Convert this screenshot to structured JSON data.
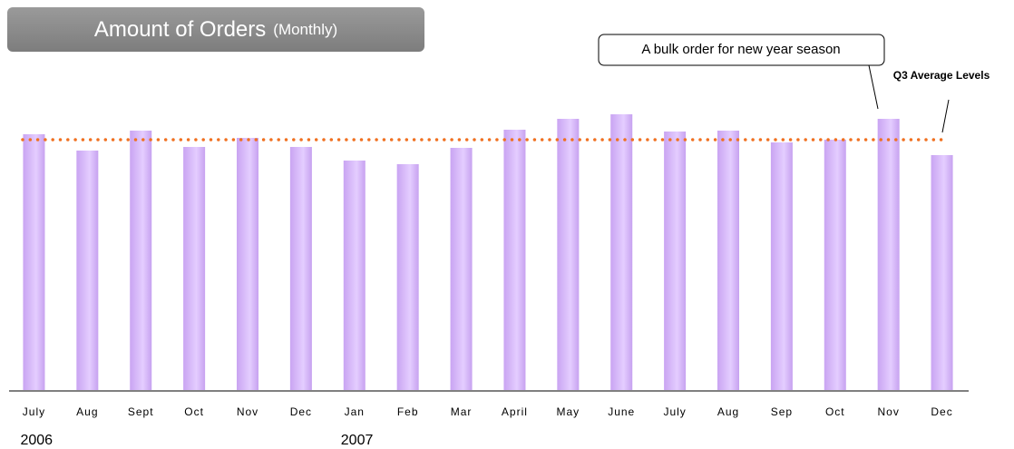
{
  "chart_data": {
    "type": "bar",
    "title": "Amount of Orders",
    "subtitle": "(Monthly)",
    "categories": [
      "July",
      "Aug",
      "Sept",
      "Oct",
      "Nov",
      "Dec",
      "Jan",
      "Feb",
      "Mar",
      "April",
      "May",
      "June",
      "July",
      "Aug",
      "Sep",
      "Oct",
      "Nov",
      "Dec"
    ],
    "year_labels": [
      "2006",
      null,
      null,
      null,
      null,
      null,
      "2007",
      null,
      null,
      null,
      null,
      null,
      null,
      null,
      null,
      null,
      null,
      null
    ],
    "values": [
      282,
      264,
      286,
      268,
      278,
      268,
      253,
      249,
      267,
      287,
      299,
      304,
      285,
      286,
      273,
      276,
      299,
      259
    ],
    "color": "#d2b2f6",
    "ylim": [
      0,
      310
    ],
    "average": {
      "value": 276,
      "label": "Q3 Average Levels",
      "color": "#f07020"
    },
    "annotation": "A bulk order for new year season"
  }
}
